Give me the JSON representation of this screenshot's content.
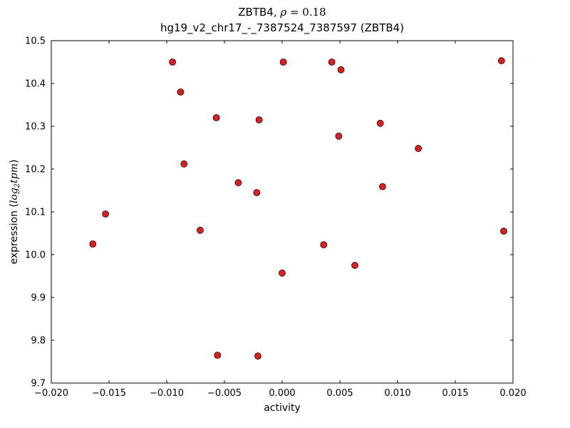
{
  "figure": {
    "title_prefix": "ZBTB4, ",
    "title_rho": "ρ",
    "title_eq": " = 0.18",
    "subtitle": "hg19_v2_chr17_-_7387524_7387597 (ZBTB4)",
    "xlabel": "activity",
    "ylabel_prefix": "expression (",
    "ylabel_log": "log",
    "ylabel_sub": "2",
    "ylabel_tpm": "tpm",
    "ylabel_suffix": ")"
  },
  "chart_data": {
    "type": "scatter",
    "title": "ZBTB4, ρ = 0.18",
    "subtitle": "hg19_v2_chr17_-_7387524_7387597 (ZBTB4)",
    "xlabel": "activity",
    "ylabel": "expression (log2 tpm)",
    "xlim": [
      -0.02,
      0.02
    ],
    "ylim": [
      9.7,
      10.5
    ],
    "xticks": [
      -0.02,
      -0.015,
      -0.01,
      -0.005,
      0,
      0.005,
      0.01,
      0.015,
      0.02
    ],
    "xtick_labels": [
      "−0.020",
      "−0.015",
      "−0.010",
      "−0.005",
      "0.000",
      "0.005",
      "0.010",
      "0.015",
      "0.020"
    ],
    "yticks": [
      9.7,
      9.8,
      9.9,
      10.0,
      10.1,
      10.2,
      10.3,
      10.4,
      10.5
    ],
    "ytick_labels": [
      "9.7",
      "9.8",
      "9.9",
      "10.0",
      "10.1",
      "10.2",
      "10.3",
      "10.4",
      "10.5"
    ],
    "grid": false,
    "legend": null,
    "frame_color": "#000000",
    "marker": {
      "shape": "circle",
      "fill": "#d62222",
      "edge": "#2a0000",
      "radius": 4.5
    },
    "points": [
      [
        -0.0164,
        10.025
      ],
      [
        -0.0153,
        10.095
      ],
      [
        -0.0095,
        10.45
      ],
      [
        -0.0088,
        10.38
      ],
      [
        -0.0085,
        10.212
      ],
      [
        -0.0071,
        10.057
      ],
      [
        -0.0057,
        10.32
      ],
      [
        -0.0056,
        9.765
      ],
      [
        -0.0038,
        10.168
      ],
      [
        -0.0022,
        10.145
      ],
      [
        -0.002,
        10.315
      ],
      [
        -0.0021,
        9.763
      ],
      [
        0.0001,
        10.45
      ],
      [
        0.0,
        9.957
      ],
      [
        0.0036,
        10.023
      ],
      [
        0.0043,
        10.45
      ],
      [
        0.0051,
        10.432
      ],
      [
        0.0049,
        10.277
      ],
      [
        0.0063,
        9.975
      ],
      [
        0.0085,
        10.307
      ],
      [
        0.0087,
        10.159
      ],
      [
        0.0118,
        10.248
      ],
      [
        0.019,
        10.453
      ],
      [
        0.0192,
        10.055
      ]
    ]
  }
}
